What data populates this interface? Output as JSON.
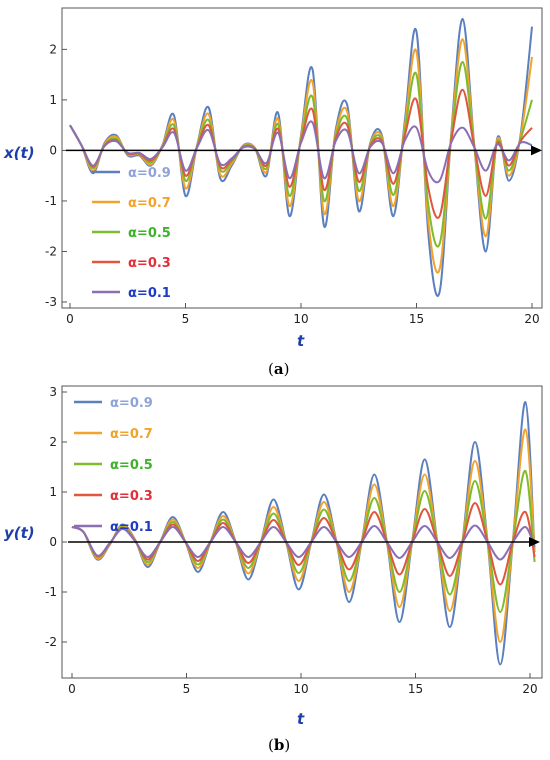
{
  "chart_data": [
    {
      "type": "line",
      "panel_label": "a",
      "ylabel": "x(t)",
      "xlabel": "t",
      "xlim": [
        0,
        20
      ],
      "ylim": [
        -3,
        2.7
      ],
      "xticks": [
        0,
        5,
        10,
        15,
        20
      ],
      "yticks": [
        -3,
        -2,
        -1,
        0,
        1,
        2
      ],
      "legend_position": "bottom-left",
      "grid": false,
      "x": [
        0,
        0.5,
        1.0,
        1.5,
        2.0,
        2.5,
        3.0,
        3.5,
        4.0,
        4.5,
        5.0,
        5.5,
        6.0,
        6.5,
        7.0,
        7.5,
        8.0,
        8.5,
        9.0,
        9.5,
        10.0,
        10.5,
        11.0,
        11.5,
        12.0,
        12.5,
        13.0,
        13.5,
        14.0,
        14.5,
        15.0,
        15.5,
        16.0,
        16.5,
        17.0,
        17.5,
        18.0,
        18.5,
        19.0,
        19.5,
        20.0
      ],
      "series": [
        {
          "name": "α=0.9",
          "color": "#5b7fbf",
          "label_color": "#8fa3d8",
          "values": [
            0.5,
            0.1,
            -0.45,
            0.15,
            0.3,
            -0.1,
            -0.1,
            -0.3,
            0.1,
            0.7,
            -0.9,
            0.1,
            0.85,
            -0.55,
            -0.3,
            0.1,
            0.05,
            -0.5,
            0.75,
            -1.3,
            0.3,
            1.6,
            -1.5,
            0.4,
            0.9,
            -1.2,
            0.15,
            0.3,
            -1.3,
            0.6,
            2.35,
            -1.6,
            -2.8,
            0.3,
            2.6,
            0.1,
            -2.0,
            0.25,
            -0.6,
            0.3,
            2.45
          ]
        },
        {
          "name": "α=0.7",
          "color": "#f2a32b",
          "label_color": "#f2a32b",
          "values": [
            0.5,
            0.1,
            -0.4,
            0.13,
            0.27,
            -0.08,
            -0.08,
            -0.28,
            0.09,
            0.6,
            -0.75,
            0.09,
            0.72,
            -0.47,
            -0.26,
            0.09,
            0.05,
            -0.43,
            0.63,
            -1.1,
            0.26,
            1.35,
            -1.25,
            0.34,
            0.77,
            -1.0,
            0.13,
            0.26,
            -1.1,
            0.5,
            1.95,
            -1.35,
            -2.35,
            0.26,
            2.2,
            0.09,
            -1.7,
            0.22,
            -0.5,
            0.26,
            1.85
          ]
        },
        {
          "name": "α=0.5",
          "color": "#7dbb2f",
          "label_color": "#3eb22a",
          "values": [
            0.5,
            0.1,
            -0.35,
            0.11,
            0.23,
            -0.07,
            -0.07,
            -0.24,
            0.08,
            0.5,
            -0.6,
            0.08,
            0.6,
            -0.38,
            -0.22,
            0.08,
            0.04,
            -0.36,
            0.52,
            -0.9,
            0.22,
            1.05,
            -1.0,
            0.28,
            0.63,
            -0.8,
            0.11,
            0.22,
            -0.88,
            0.4,
            1.5,
            -1.05,
            -1.85,
            0.22,
            1.75,
            0.08,
            -1.35,
            0.18,
            -0.4,
            0.22,
            1.0
          ]
        },
        {
          "name": "α=0.3",
          "color": "#e2553f",
          "label_color": "#e0303a",
          "values": [
            0.5,
            0.1,
            -0.32,
            0.1,
            0.2,
            -0.06,
            -0.06,
            -0.2,
            0.07,
            0.42,
            -0.5,
            0.07,
            0.5,
            -0.32,
            -0.19,
            0.07,
            0.04,
            -0.3,
            0.43,
            -0.72,
            0.18,
            0.8,
            -0.78,
            0.23,
            0.5,
            -0.62,
            0.09,
            0.18,
            -0.66,
            0.3,
            1.0,
            -0.72,
            -1.3,
            0.18,
            1.2,
            0.07,
            -0.9,
            0.15,
            -0.3,
            0.18,
            0.45
          ]
        },
        {
          "name": "α=0.1",
          "color": "#8b6fb3",
          "label_color": "#1f3bbf",
          "values": [
            0.5,
            0.1,
            -0.3,
            0.09,
            0.18,
            -0.05,
            -0.05,
            -0.17,
            0.06,
            0.35,
            -0.4,
            0.06,
            0.4,
            -0.26,
            -0.16,
            0.06,
            0.03,
            -0.25,
            0.35,
            -0.55,
            0.15,
            0.55,
            -0.55,
            0.18,
            0.38,
            -0.45,
            0.07,
            0.15,
            -0.45,
            0.2,
            0.45,
            -0.4,
            -0.6,
            0.15,
            0.45,
            0.06,
            -0.4,
            0.12,
            -0.2,
            0.15,
            0.1
          ]
        }
      ]
    },
    {
      "type": "line",
      "panel_label": "b",
      "ylabel": "y(t)",
      "xlabel": "t",
      "xlim": [
        0,
        20
      ],
      "ylim": [
        -2.6,
        3.0
      ],
      "xticks": [
        0,
        5,
        10,
        15,
        20
      ],
      "yticks": [
        -2,
        -1,
        0,
        1,
        2,
        3
      ],
      "legend_position": "top-left",
      "grid": false,
      "x": [
        0,
        0.5,
        1.1,
        1.65,
        2.2,
        2.75,
        3.3,
        3.85,
        4.4,
        4.95,
        5.5,
        6.05,
        6.6,
        7.15,
        7.7,
        8.25,
        8.8,
        9.35,
        9.9,
        10.45,
        11.0,
        11.55,
        12.1,
        12.65,
        13.2,
        13.75,
        14.3,
        14.85,
        15.4,
        15.95,
        16.5,
        17.05,
        17.6,
        18.15,
        18.7,
        19.25,
        19.8,
        20.2
      ],
      "series": [
        {
          "name": "α=0.9",
          "color": "#5b7fbf",
          "label_color": "#8fa3d8",
          "values": [
            0.3,
            0.2,
            -0.35,
            -0.05,
            0.35,
            0.05,
            -0.5,
            0.0,
            0.5,
            0.0,
            -0.6,
            0.0,
            0.6,
            0.0,
            -0.75,
            0.0,
            0.85,
            0.0,
            -0.95,
            0.0,
            0.95,
            0.0,
            -1.2,
            0.0,
            1.35,
            0.0,
            -1.6,
            0.0,
            1.65,
            0.0,
            -1.7,
            0.0,
            2.0,
            0.0,
            -2.45,
            0.0,
            2.8,
            -0.2
          ]
        },
        {
          "name": "α=0.7",
          "color": "#f2a32b",
          "label_color": "#f2a32b",
          "values": [
            0.3,
            0.2,
            -0.33,
            -0.04,
            0.33,
            0.04,
            -0.45,
            0.0,
            0.45,
            0.0,
            -0.52,
            0.0,
            0.52,
            0.0,
            -0.63,
            0.0,
            0.7,
            0.0,
            -0.78,
            0.0,
            0.8,
            0.0,
            -1.0,
            0.0,
            1.15,
            0.0,
            -1.3,
            0.0,
            1.35,
            0.0,
            -1.38,
            0.0,
            1.62,
            0.0,
            -2.0,
            0.0,
            2.25,
            -0.2
          ]
        },
        {
          "name": "α=0.5",
          "color": "#7dbb2f",
          "label_color": "#3eb22a",
          "values": [
            0.3,
            0.2,
            -0.3,
            -0.03,
            0.3,
            0.03,
            -0.4,
            0.0,
            0.4,
            0.0,
            -0.45,
            0.0,
            0.45,
            0.0,
            -0.52,
            0.0,
            0.57,
            0.0,
            -0.62,
            0.0,
            0.65,
            0.0,
            -0.78,
            0.0,
            0.88,
            0.0,
            -1.0,
            0.0,
            1.02,
            0.0,
            -1.05,
            0.0,
            1.22,
            0.0,
            -1.4,
            0.0,
            1.42,
            -0.4
          ]
        },
        {
          "name": "α=0.3",
          "color": "#e2553f",
          "label_color": "#e0303a",
          "values": [
            0.3,
            0.2,
            -0.28,
            -0.03,
            0.28,
            0.03,
            -0.35,
            0.0,
            0.35,
            0.0,
            -0.38,
            0.0,
            0.38,
            0.0,
            -0.42,
            0.0,
            0.44,
            0.0,
            -0.46,
            0.0,
            0.48,
            0.0,
            -0.55,
            0.0,
            0.6,
            0.0,
            -0.65,
            0.0,
            0.66,
            0.0,
            -0.68,
            0.0,
            0.78,
            0.0,
            -0.85,
            0.0,
            0.6,
            -0.3
          ]
        },
        {
          "name": "α=0.1",
          "color": "#8b6fb3",
          "label_color": "#1f3bbf",
          "values": [
            0.3,
            0.2,
            -0.27,
            -0.02,
            0.26,
            0.02,
            -0.3,
            0.0,
            0.3,
            0.0,
            -0.3,
            0.0,
            0.3,
            0.0,
            -0.3,
            0.0,
            0.3,
            0.0,
            -0.3,
            0.0,
            0.3,
            0.0,
            -0.3,
            0.0,
            0.32,
            0.0,
            -0.32,
            0.0,
            0.32,
            0.0,
            -0.32,
            0.0,
            0.33,
            0.0,
            -0.35,
            0.0,
            0.3,
            -0.1
          ]
        }
      ]
    }
  ],
  "captions": {
    "a": {
      "open": "(",
      "letter": "a",
      "close": ")"
    },
    "b": {
      "open": "(",
      "letter": "b",
      "close": ")"
    }
  }
}
